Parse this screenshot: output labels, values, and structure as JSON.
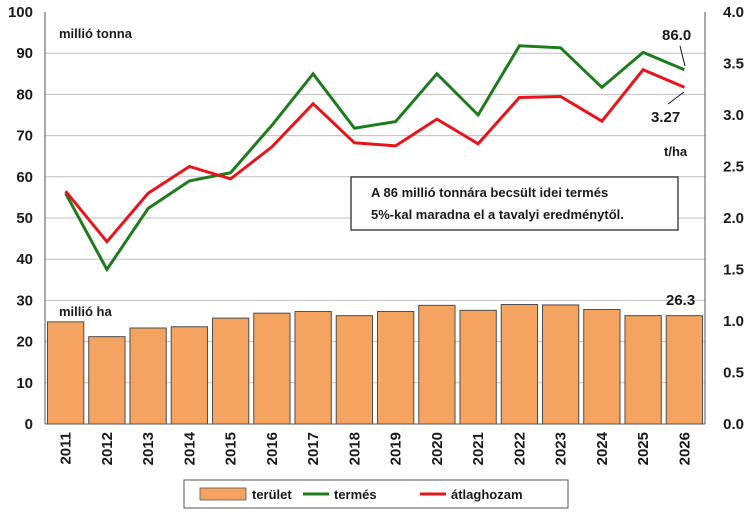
{
  "chart_data": {
    "type": "bar+line",
    "categories": [
      "2011",
      "2012",
      "2013",
      "2014",
      "2015",
      "2016",
      "2017",
      "2018",
      "2019",
      "2020",
      "2021",
      "2022",
      "2023",
      "2024",
      "2025",
      "2026"
    ],
    "series": [
      {
        "name": "terület",
        "type": "bar",
        "axis": "left",
        "color": "#F4A460",
        "values": [
          24.8,
          21.2,
          23.3,
          23.6,
          25.7,
          26.9,
          27.3,
          26.3,
          27.3,
          28.8,
          27.6,
          29.0,
          28.9,
          27.8,
          26.3,
          26.3
        ]
      },
      {
        "name": "termés",
        "type": "line",
        "axis": "left",
        "color": "#1E7B1E",
        "values": [
          56.0,
          37.5,
          52.3,
          59.0,
          61.0,
          72.5,
          85.0,
          71.8,
          73.4,
          85.0,
          75.0,
          91.8,
          91.3,
          81.7,
          90.2,
          86.0
        ]
      },
      {
        "name": "átlaghozam",
        "type": "line",
        "axis": "right",
        "color": "#E8141B",
        "values": [
          2.26,
          1.77,
          2.24,
          2.5,
          2.38,
          2.69,
          3.11,
          2.73,
          2.7,
          2.96,
          2.72,
          3.17,
          3.18,
          2.94,
          3.44,
          3.27
        ]
      }
    ],
    "left_axis": {
      "min": 0,
      "max": 100,
      "step": 10,
      "labels": [
        "0",
        "10",
        "20",
        "30",
        "40",
        "50",
        "60",
        "70",
        "80",
        "90",
        "100"
      ]
    },
    "right_axis": {
      "min": 0,
      "max": 4,
      "step": 0.5,
      "labels": [
        "0.0",
        "0.5",
        "1.0",
        "1.5",
        "2.0",
        "2.5",
        "3.0",
        "3.5",
        "4.0"
      ]
    },
    "grid": true,
    "unit_labels": {
      "left_top": "millió tonna",
      "left_bottom": "millió ha",
      "right": "t/ha"
    },
    "callouts": {
      "termes_last": "86.0",
      "hozam_last": "3.27",
      "terulet_last": "26.3"
    },
    "note": [
      "A 86 millió tonnára becsült idei termés",
      "5%-kal maradna el a tavalyi eredménytől."
    ],
    "legend_position": "bottom"
  }
}
